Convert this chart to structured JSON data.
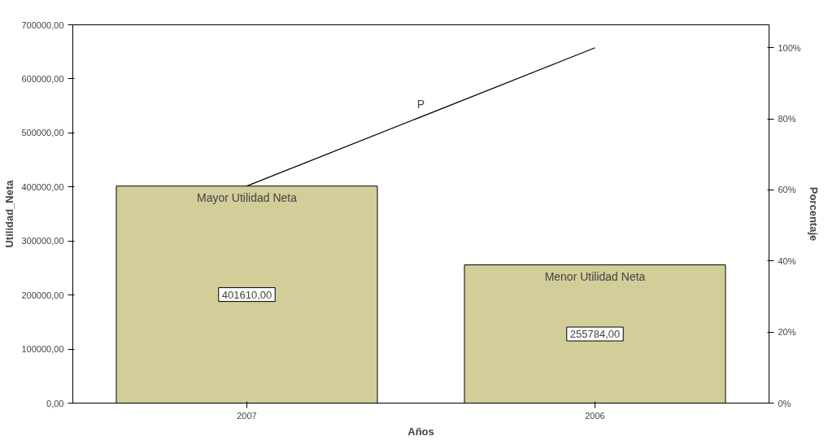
{
  "chart_data": {
    "type": "bar",
    "xlabel": "Años",
    "ylabel": "Utilidad_Neta",
    "y2label": "Porcentaje",
    "categories": [
      "2007",
      "2006"
    ],
    "series": [
      {
        "color": "#d3cd9a",
        "values": [
          401610,
          255784
        ],
        "value_labels": [
          "401610,00",
          "255784,00"
        ]
      },
      {
        "type": "line",
        "name": "P",
        "color": "#000000",
        "axis": "y2",
        "values": [
          61.1,
          100
        ]
      }
    ],
    "ylim": [
      0,
      700000
    ],
    "yticks": [
      {
        "value": 0,
        "label": "0,00"
      },
      {
        "value": 100000,
        "label": "100000,00"
      },
      {
        "value": 200000,
        "label": "200000,00"
      },
      {
        "value": 300000,
        "label": "300000,00"
      },
      {
        "value": 400000,
        "label": "400000,00"
      },
      {
        "value": 500000,
        "label": "500000,00"
      },
      {
        "value": 600000,
        "label": "600000,00"
      },
      {
        "value": 700000,
        "label": "700000,00"
      }
    ],
    "y2lim": [
      0,
      106.48
    ],
    "y2ticks": [
      {
        "value": 0,
        "label": "0%"
      },
      {
        "value": 20,
        "label": "20%"
      },
      {
        "value": 40,
        "label": "40%"
      },
      {
        "value": 60,
        "label": "60%"
      },
      {
        "value": 80,
        "label": "80%"
      },
      {
        "value": 100,
        "label": "100%"
      }
    ],
    "annotations": [
      {
        "text": "Mayor Utilidad Neta",
        "x": "2007",
        "y": 401610
      },
      {
        "text": "Menor Utilidad Neta",
        "x": "2006",
        "y": 255784
      }
    ],
    "grid": false
  }
}
